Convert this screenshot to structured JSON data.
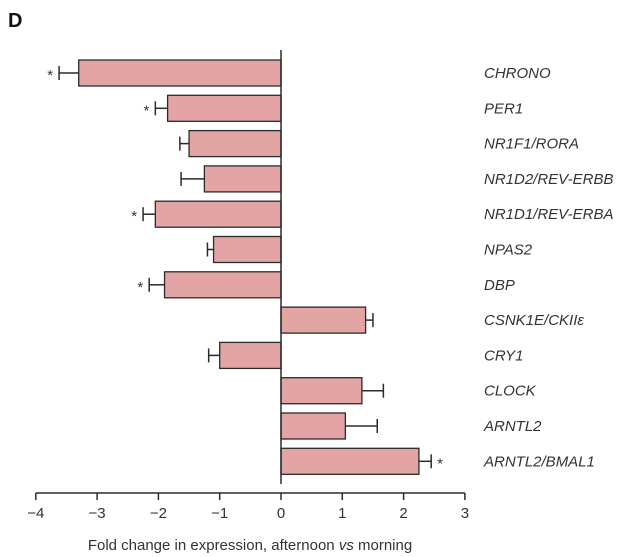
{
  "panel_label": "D",
  "chart_data": {
    "type": "bar",
    "orientation": "horizontal",
    "xlabel_parts": [
      "Fold change in expression, afternoon ",
      "vs",
      " morning"
    ],
    "ylabel": "",
    "xlim": [
      -4,
      3
    ],
    "xticks": [
      -4,
      -3,
      -2,
      -1,
      0,
      1,
      2,
      3
    ],
    "tick_labels": [
      "−4",
      "−3",
      "−2",
      "−1",
      "0",
      "1",
      "2",
      "3"
    ],
    "bar_color": "#e3a4a4",
    "bars": [
      {
        "gene": "CHRONO",
        "value": -3.3,
        "error": 0.32,
        "significant": true
      },
      {
        "gene": "PER1",
        "value": -1.85,
        "error": 0.2,
        "significant": true
      },
      {
        "gene": "NR1F1/RORA",
        "value": -1.5,
        "error": 0.15,
        "significant": false
      },
      {
        "gene": "NR1D2/REV-ERBB",
        "value": -1.25,
        "error": 0.38,
        "significant": false
      },
      {
        "gene": "NR1D1/REV-ERBA",
        "value": -2.05,
        "error": 0.2,
        "significant": true
      },
      {
        "gene": "NPAS2",
        "value": -1.1,
        "error": 0.1,
        "significant": false
      },
      {
        "gene": "DBP",
        "value": -1.9,
        "error": 0.25,
        "significant": true
      },
      {
        "gene": "CSNK1E/CKIIε",
        "value": 1.38,
        "error": 0.12,
        "significant": false
      },
      {
        "gene": "CRY1",
        "value": -1.0,
        "error": 0.18,
        "significant": false
      },
      {
        "gene": "CLOCK",
        "value": 1.32,
        "error": 0.35,
        "significant": false
      },
      {
        "gene": "ARNTL2",
        "value": 1.05,
        "error": 0.52,
        "significant": false
      },
      {
        "gene": "ARNTL2/BMAL1",
        "value": 2.25,
        "error": 0.2,
        "significant": true
      }
    ],
    "significance_marker": "*"
  }
}
